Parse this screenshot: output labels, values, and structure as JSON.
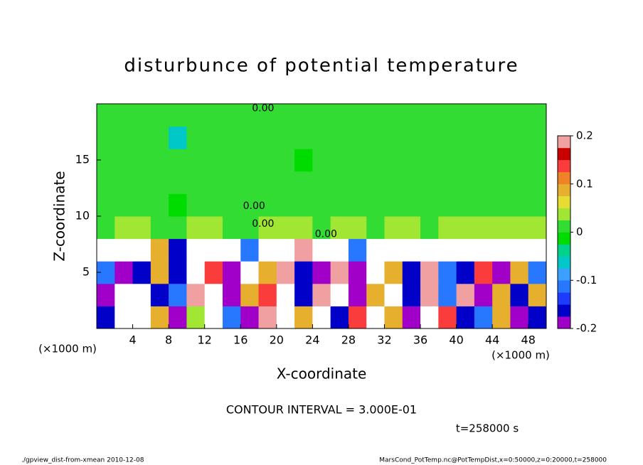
{
  "chart_data": {
    "type": "heatmap",
    "title": "disturbunce of potential temperature",
    "x_label": "X-coordinate",
    "y_label": "Z-coordinate",
    "x_unit_left": "(×1000 m)",
    "x_unit_right": "(×1000 m)",
    "xlim": [
      0,
      50
    ],
    "ylim": [
      0,
      20
    ],
    "xticks": [
      4,
      8,
      12,
      16,
      20,
      24,
      28,
      32,
      36,
      40,
      44,
      48
    ],
    "yticks": [
      5,
      10,
      15
    ],
    "x": [
      1,
      3,
      5,
      7,
      9,
      11,
      13,
      15,
      17,
      19,
      21,
      23,
      25,
      27,
      29,
      31,
      33,
      35,
      37,
      39,
      41,
      43,
      45,
      47,
      49
    ],
    "z": [
      1,
      3,
      5,
      7,
      9,
      11,
      13,
      15,
      17,
      19
    ],
    "cell_size": 2,
    "values": [
      [
        -0.15,
        0.3,
        0.3,
        0.1,
        -0.2,
        0.05,
        0.3,
        -0.1,
        -0.2,
        0.2,
        0.3,
        0.1,
        0.3,
        -0.15,
        0.15,
        0.3,
        0.1,
        -0.2,
        0.3,
        0.15,
        -0.15,
        -0.1,
        0.1,
        -0.2,
        -0.15
      ],
      [
        -0.2,
        0.3,
        0.3,
        -0.15,
        -0.1,
        0.2,
        0.3,
        -0.2,
        0.1,
        0.15,
        0.3,
        -0.15,
        0.2,
        0.3,
        -0.2,
        0.1,
        0.3,
        -0.15,
        0.2,
        -0.1,
        0.2,
        -0.2,
        0.1,
        -0.15,
        0.1
      ],
      [
        -0.1,
        -0.2,
        -0.15,
        0.1,
        -0.15,
        0.3,
        0.15,
        -0.2,
        -0.3,
        0.1,
        0.2,
        -0.15,
        -0.2,
        0.2,
        -0.18,
        0.3,
        0.1,
        -0.15,
        0.2,
        -0.1,
        -0.15,
        0.15,
        -0.2,
        0.1,
        -0.1
      ],
      [
        0.3,
        0.3,
        0.3,
        0.1,
        -0.15,
        0.3,
        0.3,
        0.3,
        -0.1,
        0.3,
        0.3,
        0.2,
        0.3,
        0.3,
        -0.1,
        0.3,
        0.3,
        0.3,
        0.3,
        0.3,
        0.3,
        0.3,
        0.3,
        0.3,
        0.3
      ],
      [
        0.02,
        0.03,
        0.03,
        0.02,
        0.01,
        0.03,
        0.03,
        0.02,
        0.02,
        0.03,
        0.03,
        0.03,
        0.02,
        0.03,
        0.03,
        0.02,
        0.03,
        0.03,
        0.02,
        0.03,
        0.03,
        0.03,
        0.04,
        0.04,
        0.04
      ],
      [
        0.01,
        0.01,
        0.01,
        0.01,
        -0.01,
        0.01,
        0.01,
        0.01,
        0.01,
        0.01,
        0.01,
        0.01,
        0.01,
        0.01,
        0.01,
        0.01,
        0.01,
        0.01,
        0.01,
        0.01,
        0.01,
        0.01,
        0.01,
        0.01,
        0.01
      ],
      [
        0.01,
        0.01,
        0.01,
        0.01,
        0.01,
        0.01,
        0.01,
        0.01,
        0.01,
        0.01,
        0.01,
        0.01,
        0.01,
        0.01,
        0.01,
        0.01,
        0.01,
        0.01,
        0.01,
        0.01,
        0.01,
        0.01,
        0.02,
        0.02,
        0.01
      ],
      [
        0.01,
        0.01,
        0.01,
        0.01,
        0.01,
        0.01,
        0.01,
        0.01,
        0.01,
        0.01,
        0.01,
        -0.01,
        0.01,
        0.01,
        0.01,
        0.01,
        0.01,
        0.01,
        0.01,
        0.01,
        0.01,
        0.01,
        0.02,
        0.02,
        0.02
      ],
      [
        0.01,
        0.01,
        0.01,
        0.01,
        -0.05,
        0.01,
        0.01,
        0.01,
        0.01,
        0.01,
        0.01,
        0.01,
        0.01,
        0.01,
        0.01,
        0.01,
        0.01,
        0.01,
        0.01,
        0.01,
        0.01,
        0.01,
        0.02,
        0.02,
        0.01
      ],
      [
        0.01,
        0.01,
        0.01,
        0.01,
        0.01,
        0.01,
        0.01,
        0.01,
        0.01,
        0.01,
        0.01,
        0.01,
        0.01,
        0.01,
        0.01,
        0.01,
        0.01,
        0.01,
        0.01,
        0.01,
        0.01,
        0.01,
        0.01,
        0.01,
        0.01
      ]
    ],
    "colorbar": {
      "levels": [
        -0.2,
        -0.175,
        -0.15,
        -0.125,
        -0.1,
        -0.075,
        -0.05,
        -0.025,
        0,
        0.025,
        0.05,
        0.075,
        0.1,
        0.125,
        0.15,
        0.175,
        0.2
      ],
      "colors": [
        "#a000c8",
        "#0000c8",
        "#1e3cff",
        "#2878ff",
        "#3ca0ff",
        "#00c8c8",
        "#00d28c",
        "#00dc00",
        "#32dc32",
        "#a0e632",
        "#e6dc32",
        "#e6af2d",
        "#f08228",
        "#fa3c3c",
        "#c80000",
        "#f0a0a0"
      ],
      "ticks": [
        -0.2,
        -0.1,
        0,
        0.1,
        0.2
      ]
    },
    "out_of_range_color": "#ffffff",
    "contour_labels": [
      {
        "text": "0.00",
        "x": 18.5,
        "z": 19.6
      },
      {
        "text": "0.00",
        "x": 17.5,
        "z": 10.9
      },
      {
        "text": "0.00",
        "x": 18.5,
        "z": 9.3
      },
      {
        "text": "0.00",
        "x": 25.5,
        "z": 8.4
      }
    ],
    "contour_interval": "CONTOUR INTERVAL = 3.000E-01",
    "time_label": "t=258000 s",
    "footer_left": "./gpview_dist-from-xmean  2010-12-08",
    "footer_right": "MarsCond_PotTemp.nc@PotTempDist,x=0:50000,z=0:20000,t=258000"
  }
}
